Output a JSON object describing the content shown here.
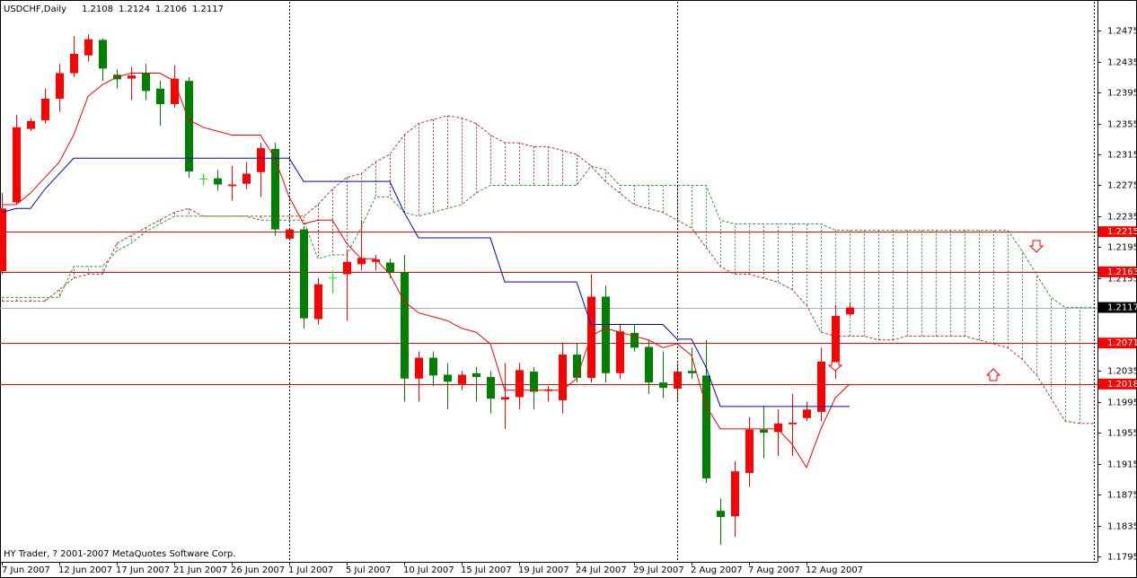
{
  "chart_data": {
    "type": "candlestick",
    "title": "USDCHF,Daily",
    "footer": "HY Trader, ? 2001-2007 MetaQuotes Software Corp.",
    "categories": [
      "7 Jun 2007",
      null,
      null,
      null,
      "12 Jun 2007",
      null,
      null,
      null,
      "17 Jun 2007",
      null,
      null,
      null,
      "21 Jun 2007",
      null,
      null,
      null,
      "26 Jun 2007",
      null,
      null,
      null,
      "1 Jul 2007",
      null,
      null,
      null,
      "5 Jul 2007",
      null,
      null,
      null,
      "10 Jul 2007",
      null,
      null,
      null,
      "15 Jul 2007",
      null,
      null,
      null,
      "19 Jul 2007",
      null,
      null,
      null,
      "24 Jul 2007",
      null,
      null,
      null,
      "29 Jul 2007",
      null,
      null,
      null,
      "2 Aug 2007",
      null,
      null,
      null,
      "7 Aug 2007",
      null,
      null,
      null,
      "12 Aug 2007",
      null,
      null,
      null,
      null,
      null,
      null,
      null,
      null,
      null,
      null,
      null,
      null,
      null,
      null,
      null,
      null,
      null,
      null,
      null,
      null
    ],
    "open": [
      1.2164,
      1.2253,
      1.2348,
      1.2359,
      1.2387,
      1.242,
      1.2443,
      1.2463,
      1.2418,
      1.2413,
      1.242,
      1.24,
      1.238,
      1.241,
      1.2283,
      1.2284,
      1.2274,
      1.2277,
      1.2292,
      1.2322,
      1.2206,
      1.2218,
      1.2102,
      1.2155,
      1.216,
      1.2173,
      1.2176,
      1.2175,
      1.2162,
      1.2025,
      1.2052,
      1.203,
      1.2018,
      1.2032,
      1.2027,
      1.1998,
      1.2001,
      1.2034,
      1.2009,
      1.1997,
      1.2056,
      1.2026,
      1.2131,
      1.2032,
      1.2084,
      1.2066,
      1.202,
      1.2012,
      1.2035,
      1.2029,
      1.1854,
      1.1847,
      1.1903,
      1.1959,
      1.1956,
      1.1966,
      1.1974,
      1.1982,
      1.2047,
      1.2108,
      null,
      null,
      null,
      null,
      null,
      null,
      null,
      null,
      null,
      null,
      null,
      null,
      null,
      null,
      null,
      null,
      null
    ],
    "high": [
      1.2265,
      1.2366,
      1.2362,
      1.24,
      1.2432,
      1.2468,
      1.247,
      1.2465,
      1.2425,
      1.2428,
      1.2432,
      1.241,
      1.243,
      1.2415,
      1.229,
      1.2295,
      1.23,
      1.2305,
      1.233,
      1.233,
      1.222,
      1.2222,
      1.2155,
      1.2165,
      1.219,
      1.223,
      1.2185,
      1.218,
      1.2185,
      1.206,
      1.206,
      1.2045,
      1.2035,
      1.204,
      1.2035,
      1.2045,
      1.2045,
      1.204,
      1.2015,
      1.207,
      1.207,
      1.216,
      1.2145,
      1.2095,
      1.2095,
      1.2075,
      1.206,
      1.2045,
      1.2065,
      1.2075,
      1.187,
      1.1918,
      1.1975,
      1.199,
      1.1985,
      1.2005,
      1.1995,
      1.2065,
      1.212,
      1.2124,
      null,
      null,
      null,
      null,
      null,
      null,
      null,
      null,
      null,
      null,
      null,
      null,
      null,
      null,
      null,
      null,
      null
    ],
    "low": [
      1.216,
      1.225,
      1.2345,
      1.2355,
      1.237,
      1.2415,
      1.2435,
      1.241,
      1.24,
      1.2385,
      1.2385,
      1.2352,
      1.2375,
      1.2285,
      1.2275,
      1.2268,
      1.2255,
      1.227,
      1.226,
      1.221,
      1.2205,
      1.209,
      1.2095,
      1.2135,
      1.21,
      1.2165,
      1.2165,
      1.2155,
      1.1995,
      1.1995,
      1.2015,
      1.1985,
      1.201,
      1.1995,
      1.198,
      1.196,
      1.1985,
      1.1985,
      1.1995,
      1.198,
      1.202,
      1.202,
      1.202,
      1.2025,
      1.206,
      1.2005,
      1.2,
      1.1995,
      1.2025,
      1.189,
      1.181,
      1.182,
      1.1885,
      1.1922,
      1.1925,
      1.1925,
      1.197,
      1.197,
      1.2025,
      1.2106,
      null,
      null,
      null,
      null,
      null,
      null,
      null,
      null,
      null,
      null,
      null,
      null,
      null,
      null,
      null,
      null,
      null
    ],
    "close": [
      1.2245,
      1.235,
      1.2358,
      1.2387,
      1.242,
      1.2445,
      1.2464,
      1.2426,
      1.2412,
      1.2417,
      1.2397,
      1.238,
      1.2413,
      1.2293,
      1.2283,
      1.2276,
      1.2276,
      1.229,
      1.2323,
      1.2218,
      1.2218,
      1.2103,
      1.2147,
      1.2155,
      1.2176,
      1.2181,
      1.2179,
      1.2162,
      1.2025,
      1.2052,
      1.2029,
      1.2021,
      1.203,
      1.2027,
      1.1999,
      1.2001,
      1.2036,
      1.2008,
      1.2011,
      1.2056,
      1.2026,
      1.2131,
      1.2032,
      1.2086,
      1.2065,
      1.202,
      1.2013,
      1.2034,
      1.2032,
      1.1896,
      1.1846,
      1.1905,
      1.1959,
      1.1955,
      1.1967,
      1.1968,
      1.1985,
      1.2047,
      1.2106,
      1.2117,
      null,
      null,
      null,
      null,
      null,
      null,
      null,
      null,
      null,
      null,
      null,
      null,
      null,
      null,
      null,
      null,
      null
    ],
    "up_color": "#ff0000",
    "down_color": "#008000",
    "doji_color": "#00ff00",
    "lines": [
      {
        "color": "#ff0000",
        "values": [
          1.225,
          1.225,
          1.2265,
          1.2285,
          1.2305,
          1.234,
          1.239,
          1.2405,
          1.2415,
          1.242,
          1.242,
          1.242,
          1.241,
          1.236,
          1.235,
          1.2345,
          1.234,
          1.234,
          1.234,
          1.231,
          1.226,
          1.2225,
          1.223,
          1.223,
          1.22,
          1.218,
          1.218,
          1.216,
          1.2125,
          1.211,
          1.2105,
          1.21,
          1.209,
          1.2085,
          1.207,
          1.201,
          1.201,
          1.201,
          1.201,
          1.201,
          1.2025,
          1.208,
          1.209,
          1.2085,
          1.208,
          1.2075,
          1.2065,
          1.207,
          1.2055,
          1.199,
          1.196,
          1.196,
          1.196,
          1.196,
          1.196,
          1.194,
          1.191,
          1.196,
          1.2,
          1.2018,
          null,
          null,
          null,
          null,
          null,
          null,
          null,
          null,
          null,
          null,
          null,
          null,
          null,
          null,
          null,
          null,
          null
        ]
      },
      {
        "color": "#0000cc",
        "values": [
          1.224,
          1.2245,
          1.2245,
          1.227,
          1.229,
          1.231,
          1.231,
          1.231,
          1.231,
          1.231,
          1.231,
          1.231,
          1.231,
          1.231,
          1.231,
          1.231,
          1.231,
          1.231,
          1.231,
          1.231,
          1.231,
          1.228,
          1.228,
          1.228,
          1.228,
          1.228,
          1.228,
          1.228,
          1.224,
          1.2207,
          1.2207,
          1.2207,
          1.2207,
          1.2207,
          1.2207,
          1.215,
          1.215,
          1.215,
          1.215,
          1.215,
          1.215,
          1.2095,
          1.2095,
          1.2095,
          1.2095,
          1.2095,
          1.2095,
          1.2076,
          1.2076,
          1.204,
          1.1989,
          1.1989,
          1.1989,
          1.1989,
          1.1989,
          1.1989,
          1.1989,
          1.1989,
          1.1989,
          1.1989,
          null,
          null,
          null,
          null,
          null,
          null,
          null,
          null,
          null,
          null,
          null,
          null,
          null,
          null,
          null,
          null,
          null
        ]
      }
    ],
    "cloud": [
      {
        "color": "#cc3333",
        "values": [
          1.2125,
          1.2125,
          1.2125,
          1.2125,
          1.214,
          1.2155,
          1.216,
          1.216,
          1.22,
          1.221,
          1.222,
          1.223,
          1.224,
          1.2245,
          1.2235,
          1.2235,
          1.2235,
          1.2235,
          1.2235,
          1.2235,
          1.2235,
          1.2235,
          1.225,
          1.227,
          1.2285,
          1.229,
          1.2305,
          1.2315,
          1.234,
          1.2355,
          1.236,
          1.2365,
          1.2362,
          1.2355,
          1.234,
          1.233,
          1.233,
          1.2325,
          1.2325,
          1.232,
          1.2315,
          1.23,
          1.228,
          1.2265,
          1.225,
          1.2245,
          1.224,
          1.223,
          1.222,
          1.2195,
          1.217,
          1.216,
          1.216,
          1.2155,
          1.215,
          1.214,
          1.212,
          1.2085,
          1.208,
          1.208,
          1.208,
          1.2075,
          1.2075,
          1.208,
          1.208,
          1.208,
          1.208,
          1.208,
          1.2075,
          1.207,
          1.2065,
          1.205,
          1.203,
          1.2,
          1.197,
          1.1967,
          1.1967
        ]
      },
      {
        "color": "#339933",
        "values": [
          1.213,
          1.213,
          1.213,
          1.213,
          1.213,
          1.217,
          1.217,
          1.217,
          1.219,
          1.22,
          1.2215,
          1.2225,
          1.2235,
          1.2235,
          1.2235,
          1.2235,
          1.2235,
          1.2235,
          1.223,
          1.223,
          1.223,
          1.223,
          1.218,
          1.2185,
          1.2185,
          1.222,
          1.226,
          1.226,
          1.224,
          1.2235,
          1.224,
          1.2245,
          1.225,
          1.2265,
          1.2275,
          1.2275,
          1.2275,
          1.2275,
          1.2275,
          1.2275,
          1.2275,
          1.23,
          1.2295,
          1.2275,
          1.2275,
          1.2275,
          1.2275,
          1.2275,
          1.2275,
          1.2275,
          1.223,
          1.2225,
          1.2225,
          1.2225,
          1.2225,
          1.2225,
          1.2225,
          1.2225,
          1.2217,
          1.2217,
          1.2217,
          1.2217,
          1.2217,
          1.2217,
          1.2217,
          1.2217,
          1.2217,
          1.2217,
          1.2217,
          1.2217,
          1.2217,
          1.219,
          1.216,
          1.213,
          1.2117,
          1.2117,
          1.2117
        ]
      }
    ],
    "levels": [
      {
        "value": 1.2215,
        "color": "#ff0000"
      },
      {
        "value": 1.2163,
        "color": "#ff0000"
      },
      {
        "value": 1.2117,
        "color": "#000000",
        "line_color": "#a0b0c0"
      },
      {
        "value": 1.2071,
        "color": "#ff0000"
      },
      {
        "value": 1.2018,
        "color": "#ff0000"
      }
    ],
    "ylim": [
      1.1788,
      1.251
    ],
    "yticks": [
      1.2475,
      1.2435,
      1.2395,
      1.2355,
      1.2315,
      1.2275,
      1.2235,
      1.2195,
      1.2155,
      1.2035,
      1.1995,
      1.1955,
      1.1915,
      1.1875,
      1.1835,
      1.1795
    ]
  }
}
